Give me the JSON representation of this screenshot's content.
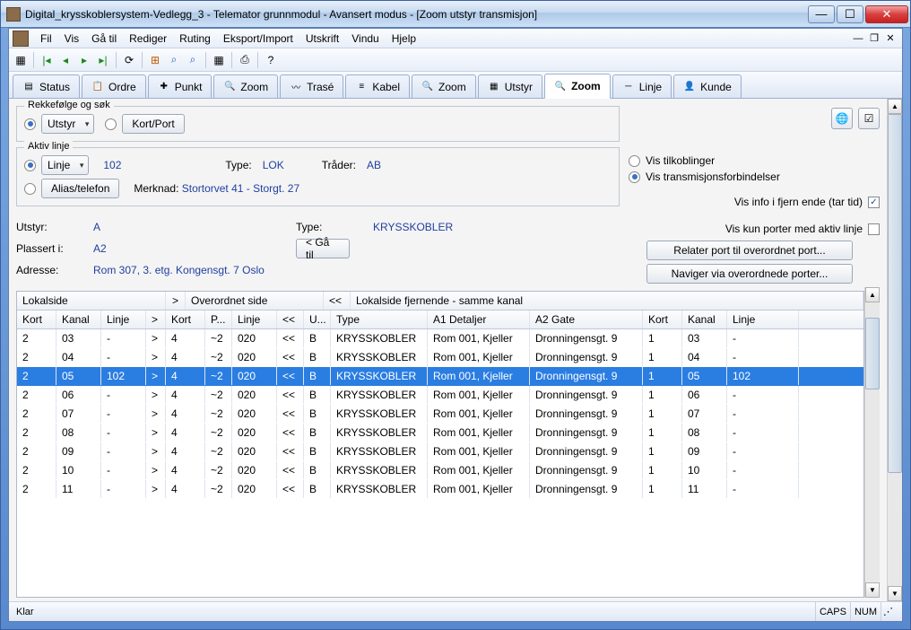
{
  "window": {
    "title": "Digital_krysskoblersystem-Vedlegg_3 - Telemator grunnmodul - Avansert modus - [Zoom utstyr transmisjon]"
  },
  "menu": [
    "Fil",
    "Vis",
    "Gå til",
    "Rediger",
    "Ruting",
    "Eksport/Import",
    "Utskrift",
    "Vindu",
    "Hjelp"
  ],
  "tabs": [
    {
      "label": "Status"
    },
    {
      "label": "Ordre"
    },
    {
      "label": "Punkt"
    },
    {
      "label": "Zoom"
    },
    {
      "label": "Trasé"
    },
    {
      "label": "Kabel"
    },
    {
      "label": "Zoom"
    },
    {
      "label": "Utstyr"
    },
    {
      "label": "Zoom",
      "active": true
    },
    {
      "label": "Linje"
    },
    {
      "label": "Kunde"
    }
  ],
  "order_panel": {
    "legend": "Rekkefølge og søk",
    "utstyr_label": "Utstyr",
    "kortport_label": "Kort/Port"
  },
  "aktiv_panel": {
    "legend": "Aktiv linje",
    "linje_select": "Linje",
    "linje_value": "102",
    "type_label": "Type:",
    "type_value": "LOK",
    "trader_label": "Tråder:",
    "trader_value": "AB",
    "alias_btn": "Alias/telefon",
    "merknad_label": "Merknad:",
    "merknad_value": "Stortorvet 41 - Storgt. 27"
  },
  "view_opts": {
    "tilkoblinger": "Vis tilkoblinger",
    "transmisjon": "Vis transmisjonsforbindelser",
    "fjern_ende": "Vis info i fjern ende (tar tid)"
  },
  "info": {
    "utstyr_label": "Utstyr:",
    "utstyr_value": "A",
    "type_label": "Type:",
    "type_value": "KRYSSKOBLER",
    "plassert_label": "Plassert i:",
    "plassert_value": "A2",
    "gaatil_btn": "< Gå til",
    "adresse_label": "Adresse:",
    "adresse_value": "Rom 307, 3. etg. Kongensgt. 7 Oslo",
    "vis_kun_aktiv": "Vis kun porter med aktiv linje",
    "relater_btn": "Relater port til overordnet port...",
    "naviger_btn": "Naviger via overordnede porter..."
  },
  "table": {
    "group_headers": {
      "g1": "Lokalside",
      "g1_arrow": ">",
      "g2": "Overordnet side",
      "g2_arrow": "<<",
      "g3": "Lokalside fjernende - samme kanal"
    },
    "headers": [
      "Kort",
      "Kanal",
      "Linje",
      ">",
      "Kort",
      "P...",
      "Linje",
      "<<",
      "U...",
      "Type",
      "A1 Detaljer",
      "A2 Gate",
      "Kort",
      "Kanal",
      "Linje"
    ],
    "rows": [
      {
        "d": [
          "2",
          "03",
          "-",
          ">",
          "4",
          "~2",
          "020",
          "<<",
          "B",
          "KRYSSKOBLER",
          "Rom 001, Kjeller",
          "Dronningensgt. 9",
          "1",
          "03",
          "-"
        ]
      },
      {
        "d": [
          "2",
          "04",
          "-",
          ">",
          "4",
          "~2",
          "020",
          "<<",
          "B",
          "KRYSSKOBLER",
          "Rom 001, Kjeller",
          "Dronningensgt. 9",
          "1",
          "04",
          "-"
        ]
      },
      {
        "d": [
          "2",
          "05",
          "102",
          ">",
          "4",
          "~2",
          "020",
          "<<",
          "B",
          "KRYSSKOBLER",
          "Rom 001, Kjeller",
          "Dronningensgt. 9",
          "1",
          "05",
          "102"
        ],
        "selected": true
      },
      {
        "d": [
          "2",
          "06",
          "-",
          ">",
          "4",
          "~2",
          "020",
          "<<",
          "B",
          "KRYSSKOBLER",
          "Rom 001, Kjeller",
          "Dronningensgt. 9",
          "1",
          "06",
          "-"
        ]
      },
      {
        "d": [
          "2",
          "07",
          "-",
          ">",
          "4",
          "~2",
          "020",
          "<<",
          "B",
          "KRYSSKOBLER",
          "Rom 001, Kjeller",
          "Dronningensgt. 9",
          "1",
          "07",
          "-"
        ]
      },
      {
        "d": [
          "2",
          "08",
          "-",
          ">",
          "4",
          "~2",
          "020",
          "<<",
          "B",
          "KRYSSKOBLER",
          "Rom 001, Kjeller",
          "Dronningensgt. 9",
          "1",
          "08",
          "-"
        ]
      },
      {
        "d": [
          "2",
          "09",
          "-",
          ">",
          "4",
          "~2",
          "020",
          "<<",
          "B",
          "KRYSSKOBLER",
          "Rom 001, Kjeller",
          "Dronningensgt. 9",
          "1",
          "09",
          "-"
        ]
      },
      {
        "d": [
          "2",
          "10",
          "-",
          ">",
          "4",
          "~2",
          "020",
          "<<",
          "B",
          "KRYSSKOBLER",
          "Rom 001, Kjeller",
          "Dronningensgt. 9",
          "1",
          "10",
          "-"
        ]
      },
      {
        "d": [
          "2",
          "11",
          "-",
          ">",
          "4",
          "~2",
          "020",
          "<<",
          "B",
          "KRYSSKOBLER",
          "Rom 001, Kjeller",
          "Dronningensgt. 9",
          "1",
          "11",
          "-"
        ]
      }
    ]
  },
  "status": {
    "ready": "Klar",
    "caps": "CAPS",
    "num": "NUM"
  }
}
